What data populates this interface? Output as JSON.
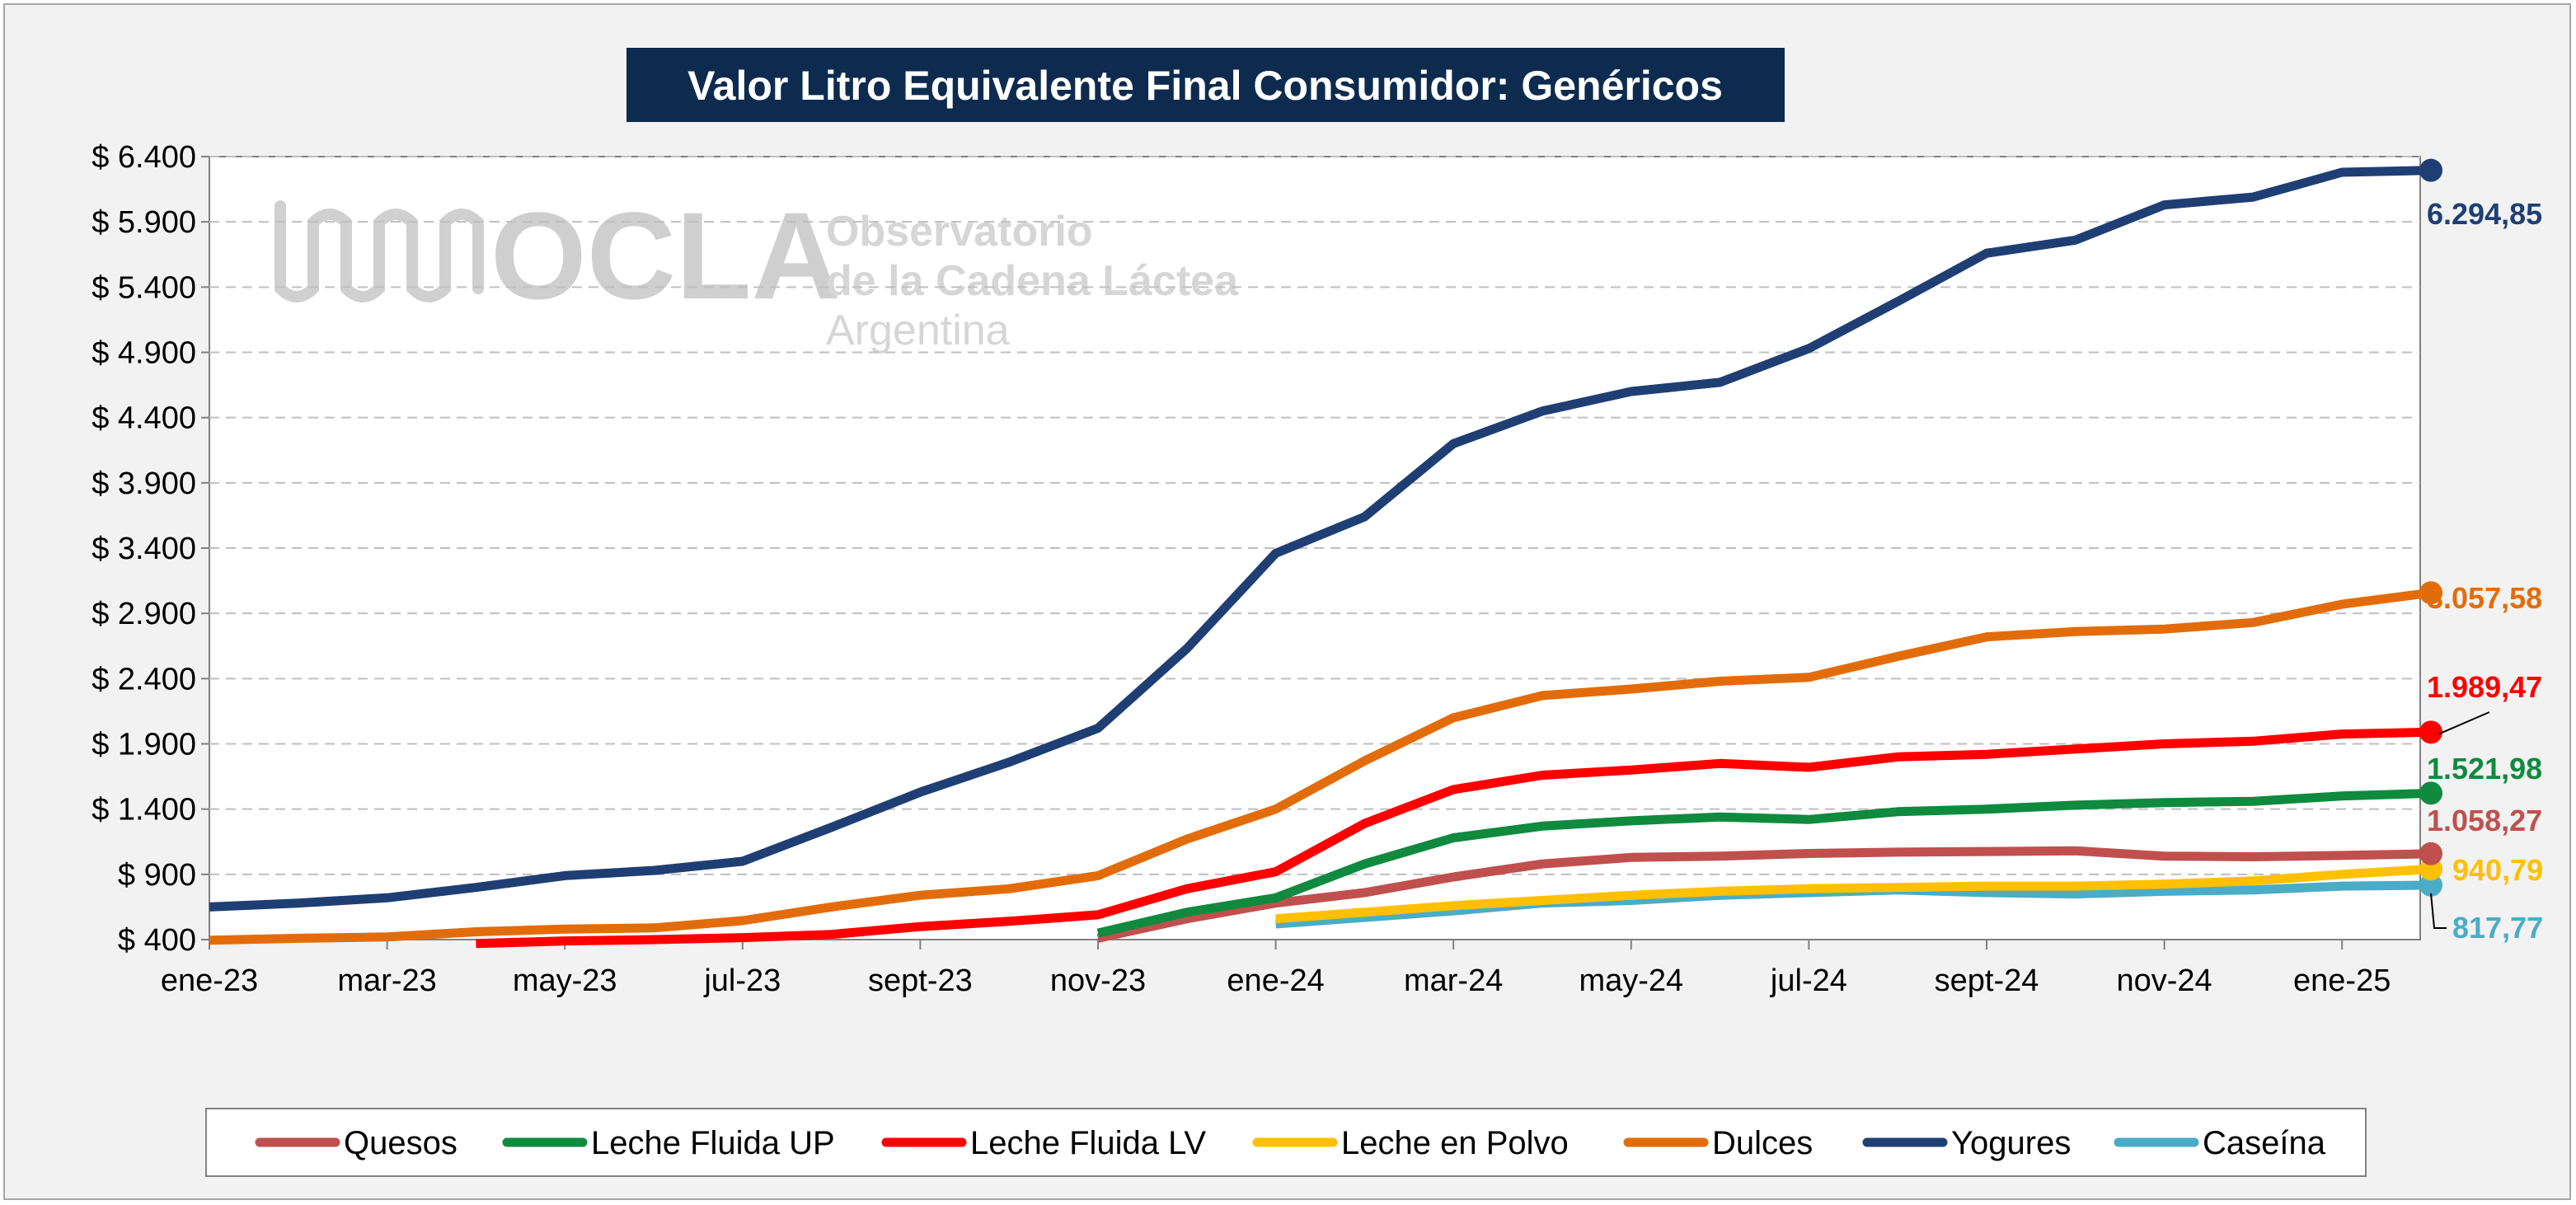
{
  "chart_data": {
    "type": "line",
    "title": "Valor Litro Equivalente Final Consumidor: Genéricos",
    "xlabel": "",
    "ylabel": "",
    "ylim": [
      400,
      6400
    ],
    "yticks": [
      400,
      900,
      1400,
      1900,
      2400,
      2900,
      3400,
      3900,
      4400,
      4900,
      5400,
      5900,
      6400
    ],
    "ytick_labels": [
      "$ 400",
      "$ 900",
      "$ 1.400",
      "$ 1.900",
      "$ 2.400",
      "$ 2.900",
      "$ 3.400",
      "$ 3.900",
      "$ 4.400",
      "$ 4.900",
      "$ 5.400",
      "$ 5.900",
      "$ 6.400"
    ],
    "x": [
      "ene-23",
      "feb-23",
      "mar-23",
      "abr-23",
      "may-23",
      "jun-23",
      "jul-23",
      "ago-23",
      "sept-23",
      "oct-23",
      "nov-23",
      "dic-23",
      "ene-24",
      "feb-24",
      "mar-24",
      "abr-24",
      "may-24",
      "jun-24",
      "jul-24",
      "ago-24",
      "sept-24",
      "oct-24",
      "nov-24",
      "dic-24",
      "ene-25",
      "feb-25"
    ],
    "xtick_labels": [
      "ene-23",
      "mar-23",
      "may-23",
      "jul-23",
      "sept-23",
      "nov-23",
      "ene-24",
      "mar-24",
      "may-24",
      "jul-24",
      "sept-24",
      "nov-24",
      "ene-25"
    ],
    "grid": true,
    "legend_position": "bottom",
    "series": [
      {
        "name": "Quesos",
        "color": "#c0504d",
        "values": [
          null,
          null,
          null,
          null,
          null,
          null,
          null,
          null,
          null,
          null,
          410,
          560,
          680,
          760,
          880,
          980,
          1030,
          1040,
          1060,
          1070,
          1075,
          1080,
          1040,
          1035,
          1045,
          1058.27
        ],
        "end_label": "1.058,27",
        "end_label_color": "#c0504d"
      },
      {
        "name": "Leche Fluida UP",
        "color": "#0f8a3e",
        "values": [
          null,
          null,
          null,
          null,
          null,
          null,
          null,
          null,
          null,
          null,
          450,
          610,
          720,
          980,
          1180,
          1270,
          1310,
          1340,
          1320,
          1380,
          1400,
          1430,
          1450,
          1460,
          1500,
          1521.98
        ],
        "end_label": "1.521,98",
        "end_label_color": "#0f8a3e"
      },
      {
        "name": "Leche Fluida LV",
        "color": "#ff0000",
        "values": [
          null,
          null,
          null,
          370,
          390,
          400,
          415,
          440,
          500,
          540,
          590,
          790,
          920,
          1290,
          1550,
          1660,
          1700,
          1750,
          1720,
          1800,
          1820,
          1860,
          1900,
          1920,
          1975,
          1989.47
        ],
        "end_label": "1.989,47",
        "end_label_color": "#ff0000"
      },
      {
        "name": "Leche en Polvo",
        "color": "#ffc000",
        "values": [
          null,
          null,
          null,
          null,
          null,
          null,
          null,
          null,
          null,
          null,
          null,
          null,
          560,
          610,
          660,
          700,
          740,
          770,
          790,
          800,
          810,
          810,
          825,
          850,
          900,
          940.79
        ],
        "end_label": "940,79",
        "end_label_color": "#ffc000"
      },
      {
        "name": "Dulces",
        "color": "#e36c0a",
        "values": [
          395,
          410,
          420,
          460,
          480,
          490,
          545,
          650,
          740,
          790,
          890,
          1170,
          1400,
          1770,
          2100,
          2270,
          2320,
          2380,
          2410,
          2570,
          2720,
          2760,
          2780,
          2830,
          2970,
          3057.58
        ],
        "end_label": "3.057,58",
        "end_label_color": "#e36c0a"
      },
      {
        "name": "Yogures",
        "color": "#1f3f74",
        "values": [
          650,
          680,
          720,
          800,
          890,
          930,
          1000,
          1260,
          1530,
          1760,
          2020,
          2630,
          3360,
          3640,
          4200,
          4450,
          4600,
          4670,
          4930,
          5290,
          5660,
          5760,
          6030,
          6090,
          6280,
          6294.85
        ],
        "end_label": "6.294,85",
        "end_label_color": "#1f3f74"
      },
      {
        "name": "Caseína",
        "color": "#4bacc6",
        "values": [
          null,
          null,
          null,
          null,
          null,
          null,
          null,
          null,
          null,
          null,
          null,
          null,
          520,
          570,
          620,
          680,
          700,
          740,
          760,
          780,
          760,
          750,
          770,
          780,
          810,
          817.77
        ],
        "end_label": "817,77",
        "end_label_color": "#4bacc6"
      }
    ]
  },
  "watermark": {
    "logo": "OCLA",
    "line1": "Observatorio",
    "line2": "de la Cadena Láctea",
    "line3": "Argentina"
  },
  "colors": {
    "title_bg": "#0d2b4f",
    "grid": "#bfbfbf",
    "background": "#f2f2f2"
  }
}
